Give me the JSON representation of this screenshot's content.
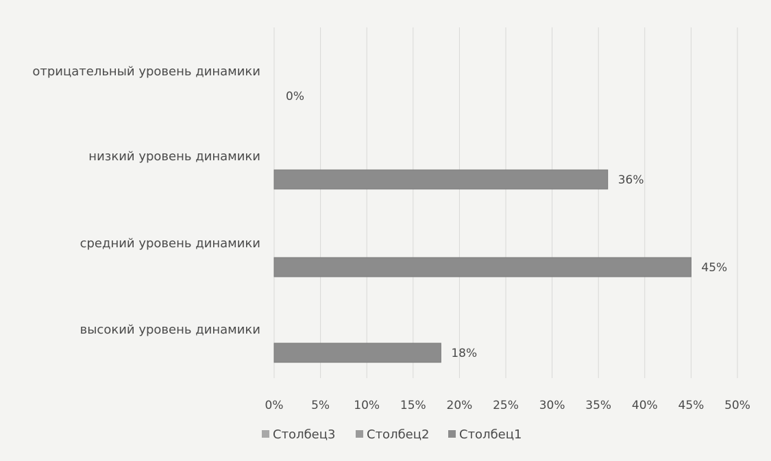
{
  "chart_data": {
    "type": "bar",
    "orientation": "horizontal",
    "categories": [
      "отрицательный уровень динамики",
      "низкий уровень динамики",
      "средний уровень динамики",
      "высокий уровень динамики"
    ],
    "series": [
      {
        "name": "Столбец3",
        "values": [
          null,
          null,
          null,
          null
        ],
        "color": "#a8a8a8"
      },
      {
        "name": "Столбец2",
        "values": [
          null,
          null,
          null,
          null
        ],
        "color": "#9a9a9a"
      },
      {
        "name": "Столбец1",
        "values": [
          0,
          36,
          45,
          18
        ],
        "color": "#8c8c8c"
      }
    ],
    "data_labels": [
      "0%",
      "36%",
      "45%",
      "18%"
    ],
    "x_ticks": [
      "0%",
      "5%",
      "10%",
      "15%",
      "20%",
      "25%",
      "30%",
      "35%",
      "40%",
      "45%",
      "50%"
    ],
    "xlim": [
      0,
      50
    ],
    "grid": "vertical",
    "legend_position": "bottom",
    "title": "",
    "xlabel": "",
    "ylabel": ""
  }
}
